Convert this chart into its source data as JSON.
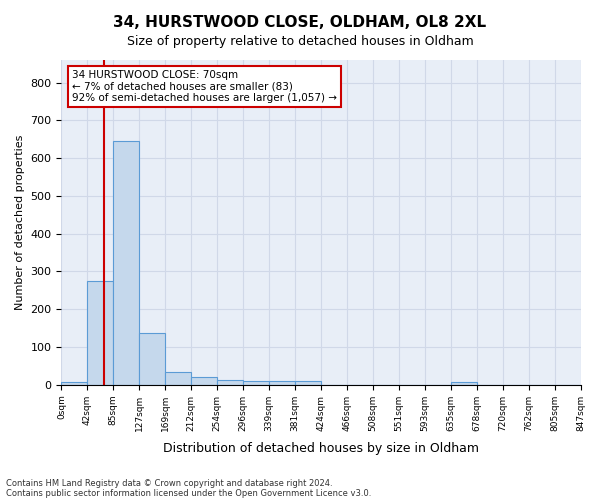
{
  "title_line1": "34, HURSTWOOD CLOSE, OLDHAM, OL8 2XL",
  "title_line2": "Size of property relative to detached houses in Oldham",
  "xlabel": "Distribution of detached houses by size in Oldham",
  "ylabel": "Number of detached properties",
  "footer_line1": "Contains HM Land Registry data © Crown copyright and database right 2024.",
  "footer_line2": "Contains public sector information licensed under the Open Government Licence v3.0.",
  "bar_values": [
    8,
    275,
    645,
    138,
    35,
    20,
    12,
    10,
    10,
    9,
    0,
    0,
    0,
    0,
    0,
    7,
    0,
    0,
    0,
    0
  ],
  "bin_labels": [
    "0sqm",
    "42sqm",
    "85sqm",
    "127sqm",
    "169sqm",
    "212sqm",
    "254sqm",
    "296sqm",
    "339sqm",
    "381sqm",
    "424sqm",
    "466sqm",
    "508sqm",
    "551sqm",
    "593sqm",
    "635sqm",
    "678sqm",
    "720sqm",
    "762sqm",
    "805sqm",
    "847sqm"
  ],
  "bar_color": "#c5d8ec",
  "bar_edge_color": "#5b9bd5",
  "grid_color": "#d0d8e8",
  "background_color": "#e8eef7",
  "annotation_line1": "34 HURSTWOOD CLOSE: 70sqm",
  "annotation_line2": "← 7% of detached houses are smaller (83)",
  "annotation_line3": "92% of semi-detached houses are larger (1,057) →",
  "annotation_box_color": "#cc0000",
  "property_line_x": 70,
  "ylim": [
    0,
    860
  ],
  "yticks": [
    0,
    100,
    200,
    300,
    400,
    500,
    600,
    700,
    800
  ],
  "num_bins": 20,
  "bin_width": 42.5
}
